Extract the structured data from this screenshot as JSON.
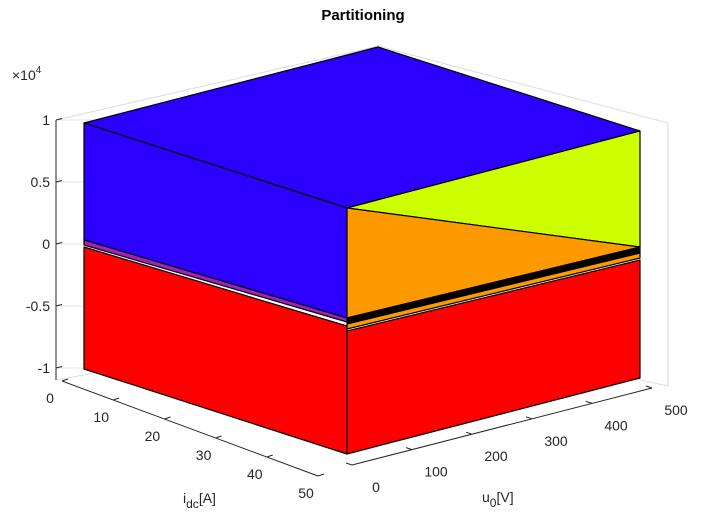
{
  "chart_data": {
    "type": "3d-polyhedra",
    "title": "Partitioning",
    "xlabel": "u0[V]",
    "xlabel_main": "u",
    "xlabel_sub": "0",
    "xlabel_unit": "[V]",
    "ylabel": "idc[A]",
    "ylabel_main": "i",
    "ylabel_sub": "dc",
    "ylabel_unit": "[A]",
    "z_exponent_main": "×10",
    "z_exponent_power": "4",
    "xlim": [
      0,
      500
    ],
    "ylim": [
      0,
      50
    ],
    "zlim": [
      -10000,
      10000
    ],
    "x_ticks": [
      "0",
      "100",
      "200",
      "300",
      "400",
      "500"
    ],
    "y_ticks": [
      "0",
      "10",
      "20",
      "30",
      "40",
      "50"
    ],
    "z_ticks": [
      "-1",
      "-0.5",
      "0",
      "0.5",
      "1"
    ],
    "grid": true,
    "regions": [
      {
        "color": "#2b00ff",
        "description": "top block",
        "z_range": [
          0,
          10000
        ]
      },
      {
        "color": "#ccff00",
        "description": "upper wedge"
      },
      {
        "color": "#ff9900",
        "description": "middle wedge"
      },
      {
        "color": "#000000",
        "description": "thin layer"
      },
      {
        "color": "#a020c0",
        "description": "thin layer"
      },
      {
        "color": "#ff0000",
        "description": "bottom block",
        "z_range": [
          -10000,
          0
        ]
      }
    ]
  }
}
